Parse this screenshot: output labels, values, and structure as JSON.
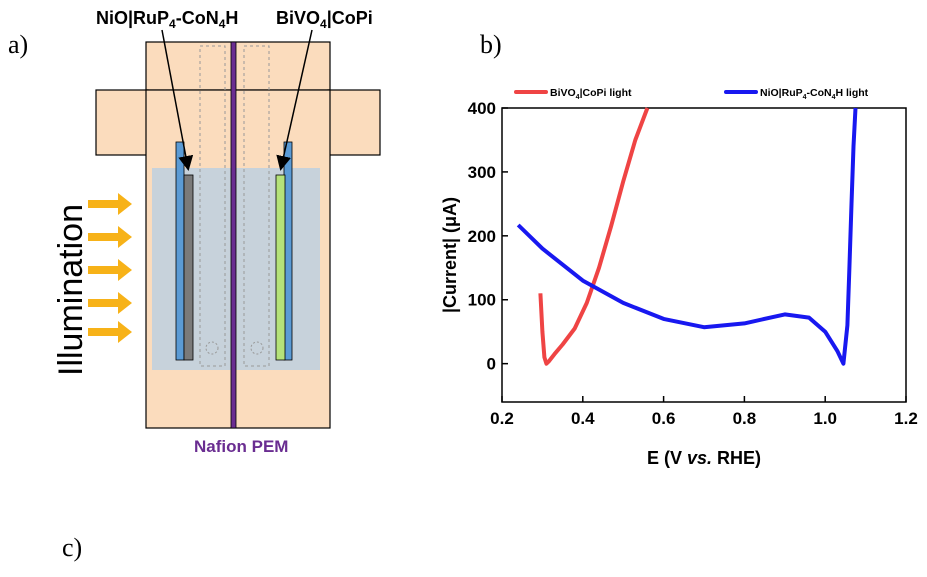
{
  "panels": {
    "a": "a)",
    "b": "b)",
    "c": "c)"
  },
  "diagram": {
    "left_electrode_label": {
      "main": "NiO|RuP",
      "sub1": "4",
      "mid": "-CoN",
      "sub2": "4",
      "end": "H"
    },
    "right_electrode_label": {
      "main": "BiVO",
      "sub1": "4",
      "end": "|CoPi"
    },
    "membrane_label": "Nafion PEM",
    "illumination_label": "Illumination",
    "colors": {
      "cell_body": "#fbdcbd",
      "electrolyte": "#c4d1dc",
      "membrane": "#6a2d91",
      "arrow": "#f7b218",
      "left_electrode": "#7a7a7a",
      "right_electrode": "#b5e27a",
      "holder": "#5b9bd5"
    }
  },
  "chart_data": {
    "type": "line",
    "xlabel": {
      "pre": "E (V ",
      "italic": "vs.",
      "post": " RHE)"
    },
    "ylabel": "|Current| (μA)",
    "xlim": [
      0.2,
      1.2
    ],
    "ylim": [
      -60,
      400
    ],
    "xticks": [
      "0.2",
      "0.4",
      "0.6",
      "0.8",
      "1.0",
      "1.2"
    ],
    "yticks": [
      "0",
      "100",
      "200",
      "300",
      "400"
    ],
    "legend_position": "top",
    "series": [
      {
        "name": {
          "main": "BiVO",
          "sub": "4",
          "end": "|CoPi light"
        },
        "color": "#ef4444",
        "x": [
          0.295,
          0.3,
          0.305,
          0.31,
          0.315,
          0.33,
          0.35,
          0.38,
          0.41,
          0.44,
          0.47,
          0.5,
          0.53,
          0.56
        ],
        "y": [
          110,
          50,
          10,
          0,
          3,
          15,
          30,
          55,
          95,
          150,
          215,
          285,
          350,
          400
        ]
      },
      {
        "name": {
          "main": "NiO|RuP",
          "sub": "4",
          "mid": "-CoN",
          "sub2": "4",
          "end": "H light"
        },
        "color": "#1818f0",
        "x": [
          0.24,
          0.3,
          0.4,
          0.5,
          0.6,
          0.7,
          0.8,
          0.9,
          0.96,
          1.0,
          1.03,
          1.045,
          1.055,
          1.06,
          1.065,
          1.07,
          1.075
        ],
        "y": [
          217,
          180,
          130,
          95,
          70,
          57,
          63,
          77,
          72,
          50,
          20,
          0,
          60,
          150,
          250,
          340,
          400
        ]
      }
    ]
  }
}
